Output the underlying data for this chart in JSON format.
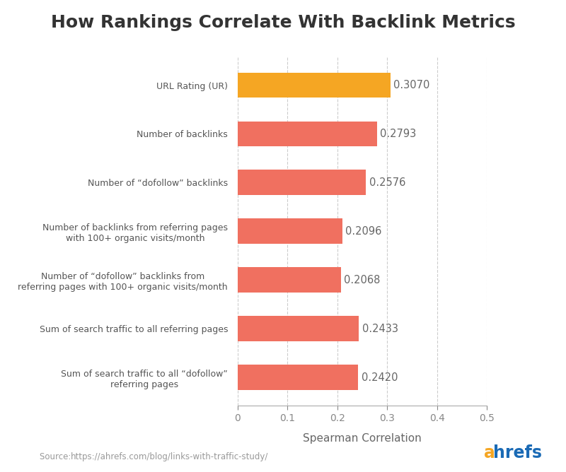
{
  "title": "How Rankings Correlate With Backlink Metrics",
  "categories": [
    "Sum of search traffic to all “dofollow”\nreferring pages",
    "Sum of search traffic to all referring pages",
    "Number of “dofollow” backlinks from\nreferring pages with 100+ organic visits/month",
    "Number of backlinks from referring pages\nwith 100+ organic visits/month",
    "Number of “dofollow” backlinks",
    "Number of backlinks",
    "URL Rating (UR)"
  ],
  "values": [
    0.242,
    0.2433,
    0.2068,
    0.2096,
    0.2576,
    0.2793,
    0.307
  ],
  "bar_colors": [
    "#f07060",
    "#f07060",
    "#f07060",
    "#f07060",
    "#f07060",
    "#f07060",
    "#f5a623"
  ],
  "value_labels": [
    "0.2420",
    "0.2433",
    "0.2068",
    "0.2096",
    "0.2576",
    "0.2793",
    "0.3070"
  ],
  "xlabel": "Spearman Correlation",
  "xlim": [
    0,
    0.5
  ],
  "xticks": [
    0,
    0.1,
    0.2,
    0.3,
    0.4,
    0.5
  ],
  "source_label": "Source:  ",
  "source_url": "https://ahrefs.com/blog/links-with-traffic-study/",
  "ahrefs_a_color": "#f5a623",
  "ahrefs_hrefs_color": "#1a6ab5",
  "background_color": "#ffffff",
  "title_fontsize": 18,
  "bar_height": 0.52,
  "grid_color": "#cccccc"
}
